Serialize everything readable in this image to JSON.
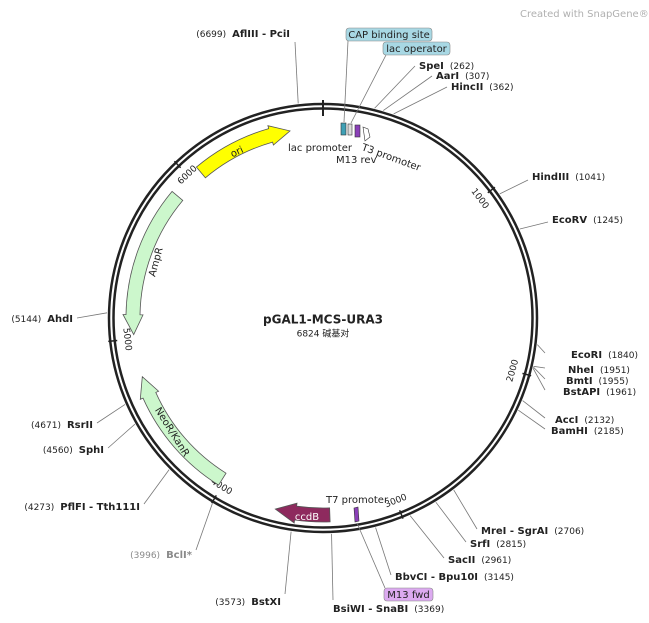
{
  "brand": "Created with SnapGene®",
  "title": "pGAL1-MCS-URA3",
  "length": "6824 碱基对",
  "total_bp": 6824,
  "ticks": [
    1000,
    2000,
    3000,
    4000,
    5000,
    6000
  ],
  "enzymes": [
    {
      "name": "AflIII - PciI",
      "site": {
        "value": 6699,
        "label": "(6699)"
      }
    },
    {
      "name": "SpeI",
      "site": {
        "value": 262,
        "label": "(262)"
      }
    },
    {
      "name": "AarI",
      "site": {
        "value": 307,
        "label": "(307)"
      }
    },
    {
      "name": "HincII",
      "site": {
        "value": 362,
        "label": "(362)"
      }
    },
    {
      "name": "HindIII",
      "site": {
        "value": 1041,
        "label": "(1041)"
      }
    },
    {
      "name": "EcoRV",
      "site": {
        "value": 1245,
        "label": "(1245)"
      }
    },
    {
      "name": "EcoRI",
      "site": {
        "value": 1840,
        "label": "(1840)"
      }
    },
    {
      "name": "NheI",
      "site": {
        "value": 1951,
        "label": "(1951)"
      }
    },
    {
      "name": "BmtI",
      "site": {
        "value": 1955,
        "label": "(1955)"
      }
    },
    {
      "name": "BstAPI",
      "site": {
        "value": 1961,
        "label": "(1961)"
      }
    },
    {
      "name": "AccI",
      "site": {
        "value": 2132,
        "label": "(2132)"
      }
    },
    {
      "name": "BamHI",
      "site": {
        "value": 2185,
        "label": "(2185)"
      }
    },
    {
      "name": "MreI - SgrAI",
      "site": {
        "value": 2706,
        "label": "(2706)"
      }
    },
    {
      "name": "SrfI",
      "site": {
        "value": 2815,
        "label": "(2815)"
      }
    },
    {
      "name": "SacII",
      "site": {
        "value": 2961,
        "label": "(2961)"
      }
    },
    {
      "name": "BbvCI - Bpu10I",
      "site": {
        "value": 3145,
        "label": "(3145)"
      }
    },
    {
      "name": "BsiWI - SnaBI",
      "site": {
        "value": 3369,
        "label": "(3369)"
      }
    },
    {
      "name": "BstXI",
      "site": {
        "value": 3573,
        "label": "(3573)"
      }
    },
    {
      "name": "BclI*",
      "site": {
        "value": 3996,
        "label": "(3996)"
      },
      "color": "#8a8a8a"
    },
    {
      "name": "PflFI - Tth111I",
      "site": {
        "value": 4273,
        "label": "(4273)"
      }
    },
    {
      "name": "SphI",
      "site": {
        "value": 4560,
        "label": "(4560)"
      }
    },
    {
      "name": "RsrII",
      "site": {
        "value": 4671,
        "label": "(4671)"
      }
    },
    {
      "name": "AhdI",
      "site": {
        "value": 5144,
        "label": "(5144)"
      }
    }
  ],
  "features": [
    {
      "label": "ori",
      "color": "#ffff00",
      "text_color": "#222"
    },
    {
      "label": "AmpR",
      "color": "#ccf7cc",
      "text_color": "#222"
    },
    {
      "label": "NeoR/KanR",
      "color": "#ccf7cc",
      "text_color": "#222"
    },
    {
      "label": "ccdB",
      "color": "#8e2a5e",
      "text_color": "#ffffff"
    }
  ],
  "small_features": [
    "lac promoter",
    "M13 rev",
    "T3 promoter",
    "T7 promoter"
  ],
  "boxed_labels": [
    {
      "label": "CAP binding site",
      "color": "#a8d8e4"
    },
    {
      "label": "lac operator",
      "color": "#a8d8e4"
    },
    {
      "label": "M13 fwd",
      "color": "#dcaaf0"
    }
  ]
}
